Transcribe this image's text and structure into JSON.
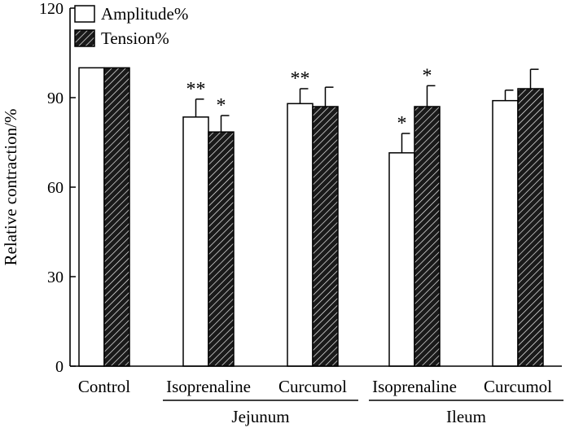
{
  "chart_data": {
    "type": "bar",
    "title": "",
    "xlabel": "",
    "ylabel": "Relative contraction/%",
    "ylim": [
      0,
      120
    ],
    "yticks": [
      0,
      30,
      60,
      90,
      120
    ],
    "grid": false,
    "legend_position": "top-left",
    "colors": {
      "amplitude": "#ffffff",
      "tension": "#1a1a1a",
      "stroke": "#000000"
    },
    "categories": [
      "Control",
      "Isoprenaline",
      "Curcumol",
      "Isoprenaline",
      "Curcumol"
    ],
    "groups": [
      {
        "label": "Jejunum",
        "from": 1,
        "to": 2
      },
      {
        "label": "Ileum",
        "from": 3,
        "to": 4
      }
    ],
    "series": [
      {
        "name": "Amplitude%",
        "pattern": "open",
        "values": [
          100,
          83.5,
          88,
          71.5,
          89
        ],
        "errors": [
          0,
          6,
          5,
          6.5,
          3.5
        ],
        "significance": [
          "",
          "**",
          "**",
          "*",
          ""
        ]
      },
      {
        "name": "Tension%",
        "pattern": "hatched",
        "values": [
          100,
          78.5,
          87,
          87,
          93
        ],
        "errors": [
          0,
          5.5,
          6.5,
          7,
          6.5
        ],
        "significance": [
          "",
          "*",
          "",
          "*",
          ""
        ]
      }
    ]
  }
}
